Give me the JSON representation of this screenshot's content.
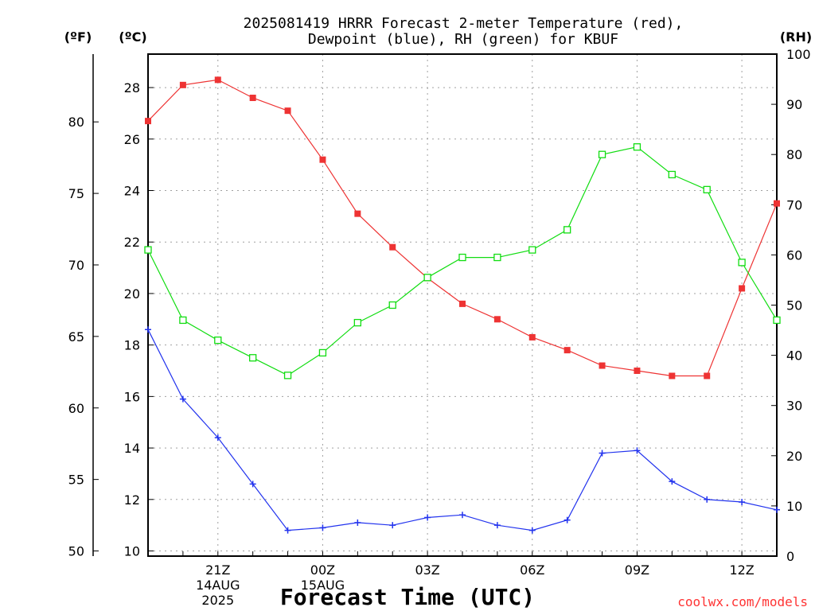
{
  "chart_data": {
    "type": "line",
    "title_line1": "2025081419 HRRR Forecast 2-meter Temperature (red),",
    "title_line2": "Dewpoint (blue), RH (green) for KBUF",
    "units": {
      "fahrenheit": "(ºF)",
      "celsius": "(ºC)",
      "rh": "(RH)"
    },
    "xlabel": "Forecast Time (UTC)",
    "credit": "coolwx.com/models",
    "x_hours": [
      19,
      20,
      21,
      22,
      23,
      24,
      25,
      26,
      27,
      28,
      29,
      30,
      31,
      32,
      33,
      34,
      35,
      36,
      37
    ],
    "x_range": [
      19,
      37
    ],
    "x_ticks": [
      {
        "hour": 21,
        "lines": [
          "21Z",
          "14AUG",
          "2025"
        ]
      },
      {
        "hour": 24,
        "lines": [
          "00Z",
          "15AUG"
        ]
      },
      {
        "hour": 27,
        "lines": [
          "03Z"
        ]
      },
      {
        "hour": 30,
        "lines": [
          "06Z"
        ]
      },
      {
        "hour": 33,
        "lines": [
          "09Z"
        ]
      },
      {
        "hour": 36,
        "lines": [
          "12Z"
        ]
      }
    ],
    "y_celsius_range": [
      9.8,
      29.3
    ],
    "y_celsius_ticks": [
      "10",
      "12",
      "14",
      "16",
      "18",
      "20",
      "22",
      "24",
      "26",
      "28"
    ],
    "y_fahrenheit_ticks": [
      "50",
      "55",
      "60",
      "65",
      "70",
      "75",
      "80"
    ],
    "y_rh_range": [
      0,
      100
    ],
    "y_rh_ticks": [
      "0",
      "10",
      "20",
      "30",
      "40",
      "50",
      "60",
      "70",
      "80",
      "90",
      "100"
    ],
    "grid": true,
    "series": [
      {
        "name": "Temperature",
        "axis": "celsius",
        "color": "#ee3333",
        "marker": "filled-square",
        "values": [
          26.7,
          28.1,
          28.3,
          27.6,
          27.1,
          25.2,
          23.1,
          21.8,
          20.6,
          19.6,
          19.0,
          18.3,
          17.8,
          17.2,
          17.0,
          16.8,
          16.8,
          20.2,
          23.5
        ]
      },
      {
        "name": "Dewpoint",
        "axis": "celsius",
        "color": "#2233ee",
        "marker": "plus",
        "values": [
          18.6,
          15.9,
          14.4,
          12.6,
          10.8,
          10.9,
          11.1,
          11.0,
          11.3,
          11.4,
          11.0,
          10.8,
          11.2,
          13.8,
          13.9,
          12.7,
          12.0,
          11.9,
          11.6
        ]
      },
      {
        "name": "RH",
        "axis": "rh",
        "color": "#11dd11",
        "marker": "open-square",
        "values": [
          61,
          47,
          43,
          39.5,
          36,
          40.5,
          46.5,
          50,
          55.5,
          59.5,
          59.5,
          61,
          65,
          80,
          81.5,
          76,
          73,
          58.5,
          47
        ]
      }
    ]
  }
}
